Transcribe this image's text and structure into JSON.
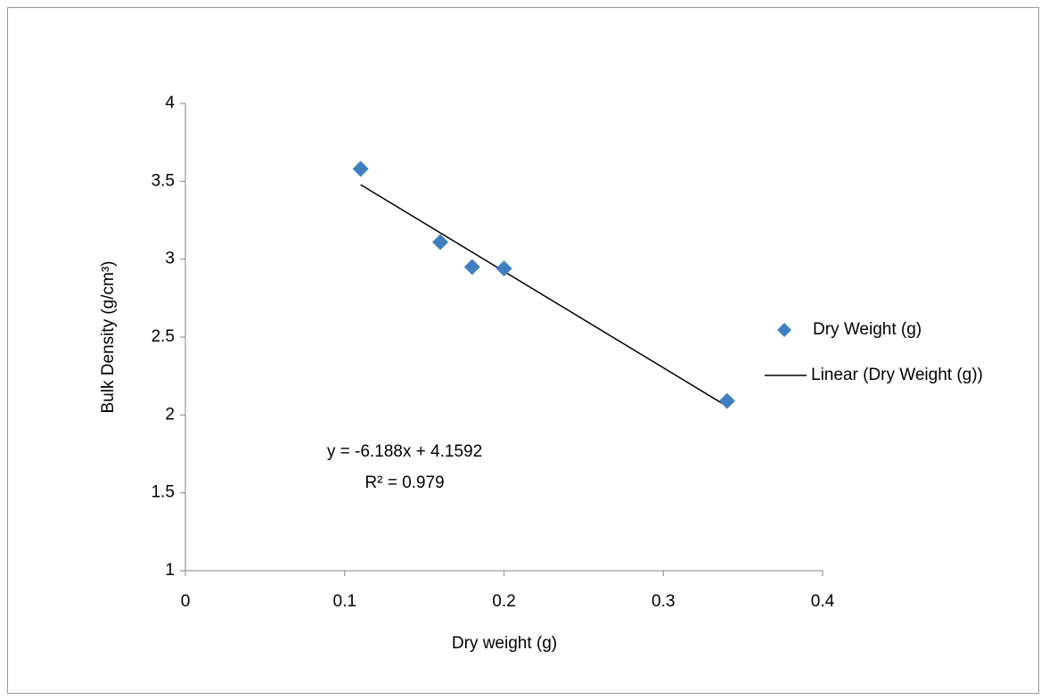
{
  "chart_data": {
    "type": "scatter",
    "x_label": "Dry weight (g)",
    "y_label": "Bulk Density (g/cm³)",
    "series": [
      {
        "name": "Dry Weight (g)",
        "color": "#3f7fc1",
        "x": [
          0.11,
          0.16,
          0.18,
          0.2,
          0.34
        ],
        "values": [
          3.58,
          3.11,
          2.95,
          2.94,
          2.09
        ]
      }
    ],
    "trendline": {
      "name": "Linear (Dry Weight (g))",
      "color": "#000000",
      "slope": -6.188,
      "intercept": 4.1592,
      "equation": "y = -6.188x + 4.1592",
      "r_squared": "R² = 0.979"
    },
    "xlim": [
      0,
      0.4
    ],
    "xticks": [
      0,
      0.1,
      0.2,
      0.3,
      0.4
    ],
    "ylim": [
      1,
      4
    ],
    "yticks": [
      1,
      1.5,
      2,
      2.5,
      3,
      3.5,
      4
    ],
    "grid": false,
    "legend": "right"
  }
}
